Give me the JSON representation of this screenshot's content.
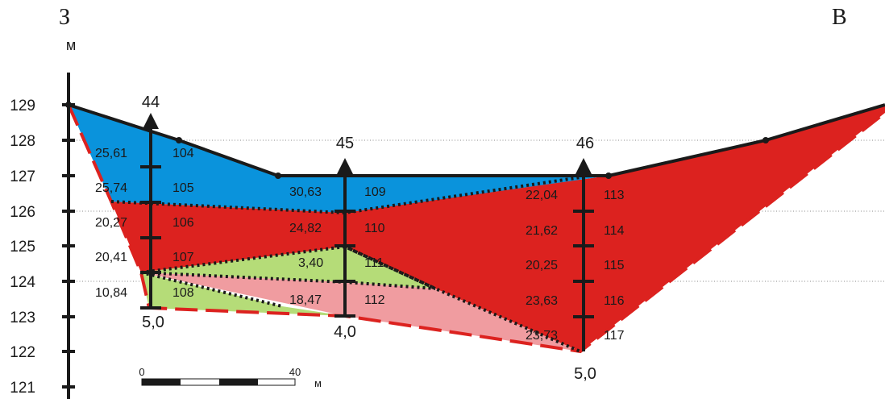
{
  "directions": {
    "west": "З",
    "east": "В"
  },
  "axis": {
    "unit": "м",
    "ticks": [
      "129",
      "128",
      "127",
      "126",
      "125",
      "124",
      "123",
      "122",
      "121"
    ]
  },
  "wells": [
    {
      "number": "44",
      "depth": "5,0"
    },
    {
      "number": "45",
      "depth": "4,0"
    },
    {
      "number": "46",
      "depth": "5,0"
    }
  ],
  "samples": [
    {
      "value": "25,61",
      "id": "104"
    },
    {
      "value": "25,74",
      "id": "105"
    },
    {
      "value": "20,27",
      "id": "106"
    },
    {
      "value": "20,41",
      "id": "107"
    },
    {
      "value": "10,84",
      "id": "108"
    },
    {
      "value": "30,63",
      "id": "109"
    },
    {
      "value": "24,82",
      "id": "110"
    },
    {
      "value": "3,40",
      "id": "111"
    },
    {
      "value": "18,47",
      "id": "112"
    },
    {
      "value": "22,04",
      "id": "113"
    },
    {
      "value": "21,62",
      "id": "114"
    },
    {
      "value": "20,25",
      "id": "115"
    },
    {
      "value": "23,63",
      "id": "116"
    },
    {
      "value": "23,73",
      "id": "117"
    }
  ],
  "scale_bar": {
    "start": "0",
    "end": "40",
    "unit": "м"
  },
  "colors": {
    "blue": "#0a93dc",
    "red": "#dc221f",
    "green": "#b5dc78",
    "pink": "#f09ca0",
    "line": "#1a1a1a",
    "dash": "#dc221f"
  }
}
